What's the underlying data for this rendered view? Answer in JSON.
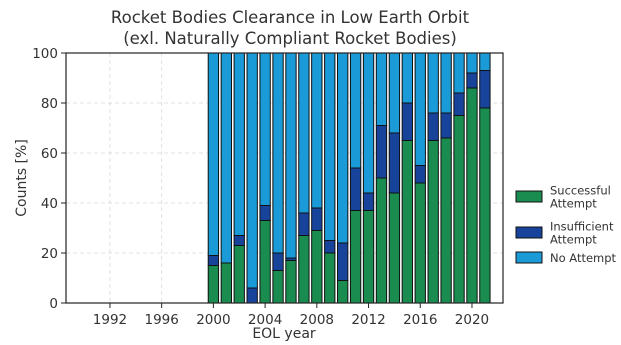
{
  "chart_data": {
    "type": "bar",
    "stacked": true,
    "title": "Rocket Bodies Clearance in Low Earth Orbit",
    "subtitle": "(exl. Naturally Compliant Rocket Bodies)",
    "xlabel": "EOL year",
    "ylabel": "Counts [%]",
    "xlim": [
      1988.6,
      2022.4
    ],
    "ylim": [
      0,
      100
    ],
    "xticks": [
      1992,
      1996,
      2000,
      2004,
      2008,
      2012,
      2016,
      2020
    ],
    "yticks": [
      0,
      20,
      40,
      60,
      80,
      100
    ],
    "grid": true,
    "legend_position": "right",
    "x": [
      2000,
      2001,
      2002,
      2003,
      2004,
      2005,
      2006,
      2007,
      2008,
      2009,
      2010,
      2011,
      2012,
      2013,
      2014,
      2015,
      2016,
      2017,
      2018,
      2019,
      2020,
      2021
    ],
    "series": [
      {
        "name": "Successful Attempt",
        "color": "#1a8c4f",
        "values": [
          15,
          16,
          23,
          0,
          33,
          13,
          17,
          27,
          29,
          20,
          9,
          37,
          37,
          50,
          44,
          65,
          48,
          65,
          66,
          75,
          86,
          78
        ]
      },
      {
        "name": "Insufficient Attempt",
        "color": "#17449a",
        "values": [
          4,
          0,
          4,
          6,
          6,
          7,
          1,
          9,
          9,
          5,
          15,
          17,
          7,
          21,
          24,
          15,
          7,
          11,
          10,
          9,
          6,
          15
        ]
      },
      {
        "name": "No Attempt",
        "color": "#1a9ad6",
        "values": [
          81,
          84,
          73,
          94,
          61,
          80,
          82,
          64,
          62,
          75,
          76,
          46,
          56,
          29,
          32,
          20,
          45,
          24,
          24,
          16,
          8,
          7
        ]
      }
    ]
  }
}
